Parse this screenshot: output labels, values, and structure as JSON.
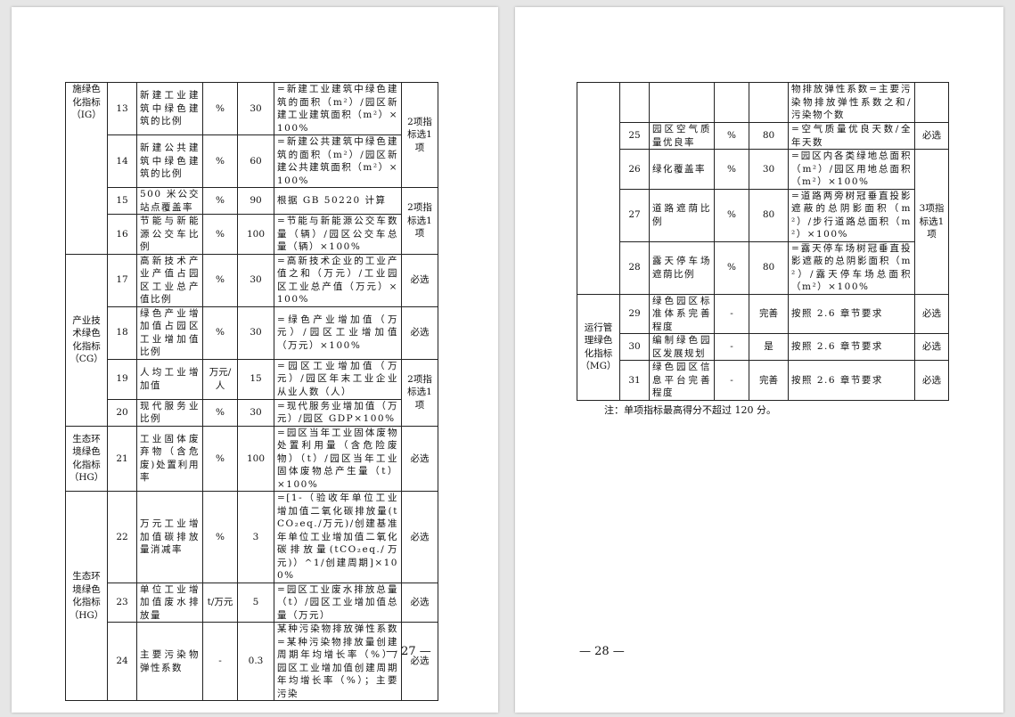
{
  "left_page": {
    "page_number": "— 27 —",
    "categories": [
      "施绿色化指标（IG）",
      "产业技术绿色化指标（CG）",
      "生态环境绿色化指标（HG）",
      "生态环境绿色化指标（HG）"
    ],
    "selects": [
      "2项指标选1项",
      "2项指标选1项",
      "必选",
      "必选",
      "2项指标选1项",
      "必选",
      "必选",
      "必选",
      "必选"
    ],
    "rows": [
      {
        "no": "13",
        "name": "新建工业建筑中绿色建筑的比例",
        "unit": "%",
        "value": "30",
        "formula": "=新建工业建筑中绿色建筑的面积（m²）/园区新建工业建筑面积（m²）×100%"
      },
      {
        "no": "14",
        "name": "新建公共建筑中绿色建筑的比例",
        "unit": "%",
        "value": "60",
        "formula": "=新建公共建筑中绿色建筑的面积（m²）/园区新建公共建筑面积（m²）×100%"
      },
      {
        "no": "15",
        "name": "500 米公交站点覆盖率",
        "unit": "%",
        "value": "90",
        "formula": "根据 GB 50220 计算"
      },
      {
        "no": "16",
        "name": "节能与新能源公交车比例",
        "unit": "%",
        "value": "100",
        "formula": "=节能与新能源公交车数量（辆）/园区公交车总量（辆）×100%"
      },
      {
        "no": "17",
        "name": "高新技术产业产值占园区工业总产值比例",
        "unit": "%",
        "value": "30",
        "formula": "=高新技术企业的工业产值之和（万元）/工业园区工业总产值（万元）×100%"
      },
      {
        "no": "18",
        "name": "绿色产业增加值占园区工业增加值比例",
        "unit": "%",
        "value": "30",
        "formula": "=绿色产业增加值（万元）/园区工业增加值（万元）×100%"
      },
      {
        "no": "19",
        "name": "人均工业增加值",
        "unit": "万元/人",
        "value": "15",
        "formula": "=园区工业增加值（万元）/园区年末工业企业从业人数（人）"
      },
      {
        "no": "20",
        "name": "现代服务业比例",
        "unit": "%",
        "value": "30",
        "formula": "=现代服务业增加值（万元）/园区 GDP×100%"
      },
      {
        "no": "21",
        "name": "工业固体废弃物（含危废)处置利用率",
        "unit": "%",
        "value": "100",
        "formula": "=园区当年工业固体废物处置利用量（含危险废物）（t）/园区当年工业固体废物总产生量（t）×100%"
      },
      {
        "no": "22",
        "name": "万元工业增加值碳排放量消减率",
        "unit": "%",
        "value": "3",
        "formula": "=[1-（验收年单位工业增加值二氧化碳排放量(tCO₂eq./万元)/创建基准年单位工业增加值二氧化碳排放量(tCO₂eq./万元)）^1/创建周期]×100%"
      },
      {
        "no": "23",
        "name": "单位工业增加值废水排放量",
        "unit": "t/万元",
        "value": "5",
        "formula": "=园区工业废水排放总量（t）/园区工业增加值总量（万元）"
      },
      {
        "no": "24",
        "name": "主要污染物弹性系数",
        "unit": "-",
        "value": "0.3",
        "formula": "某种污染物排放弹性系数=某种污染物排放量创建周期年均增长率（%）/园区工业增加值创建周期年均增长率（%）；主要污染"
      }
    ]
  },
  "right_page": {
    "page_number": "— 28 —",
    "categories": [
      "",
      "运行管理绿色化指标（MG）"
    ],
    "selects": [
      "",
      "必选",
      "3项指标选1项",
      "必选",
      "必选",
      "必选"
    ],
    "rows": [
      {
        "no": "",
        "name": "",
        "unit": "",
        "value": "",
        "formula": "物排放弹性系数=主要污染物排放弹性系数之和/污染物个数"
      },
      {
        "no": "25",
        "name": "园区空气质量优良率",
        "unit": "%",
        "value": "80",
        "formula": "=空气质量优良天数/全年天数"
      },
      {
        "no": "26",
        "name": "绿化覆盖率",
        "unit": "%",
        "value": "30",
        "formula": "=园区内各类绿地总面积（m²）/园区用地总面积（m²）×100%"
      },
      {
        "no": "27",
        "name": "道路遮荫比例",
        "unit": "%",
        "value": "80",
        "formula": "=道路两旁树冠垂直投影遮蔽的总阴影面积（m²）/步行道路总面积（m²）×100%"
      },
      {
        "no": "28",
        "name": "露天停车场遮荫比例",
        "unit": "%",
        "value": "80",
        "formula": "=露天停车场树冠垂直投影遮蔽的总阴影面积（m²）/露天停车场总面积（m²）×100%"
      },
      {
        "no": "29",
        "name": "绿色园区标准体系完善程度",
        "unit": "-",
        "value": "完善",
        "formula": "按照 2.6 章节要求"
      },
      {
        "no": "30",
        "name": "编制绿色园区发展规划",
        "unit": "-",
        "value": "是",
        "formula": "按照 2.6 章节要求"
      },
      {
        "no": "31",
        "name": "绿色园区信息平台完善程度",
        "unit": "-",
        "value": "完善",
        "formula": "按照 2.6 章节要求"
      }
    ],
    "note": "注：单项指标最高得分不超过 120 分。"
  }
}
